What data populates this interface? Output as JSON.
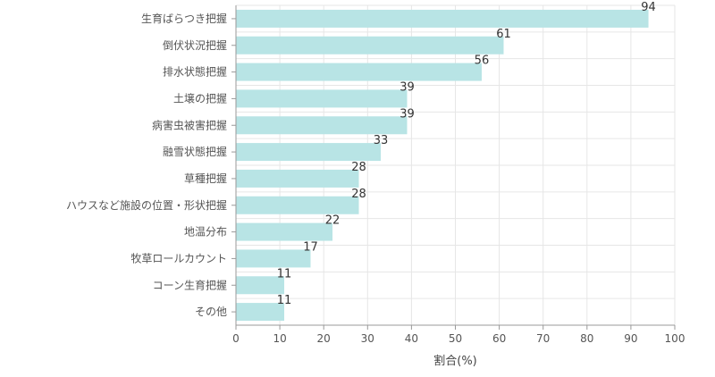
{
  "chart_data": {
    "type": "bar",
    "orientation": "horizontal",
    "categories": [
      "生育ばらつき把握",
      "倒伏状況把握",
      "排水状態把握",
      "土壌の把握",
      "病害虫被害把握",
      "融雪状態把握",
      "草種把握",
      "ハウスなど施設の位置・形状把握",
      "地温分布",
      "牧草ロールカウント",
      "コーン生育把握",
      "その他"
    ],
    "values": [
      94,
      61,
      56,
      39,
      39,
      33,
      28,
      28,
      22,
      17,
      11,
      11
    ],
    "data_labels": [
      "94",
      "61",
      "56",
      "39",
      "39",
      "33",
      "28",
      "28",
      "22",
      "17",
      "11",
      "11"
    ],
    "xlabel": "割合(%)",
    "ylabel": "",
    "xlim": [
      0,
      100
    ],
    "x_ticks": [
      "0",
      "10",
      "20",
      "30",
      "40",
      "50",
      "60",
      "70",
      "80",
      "90",
      "100"
    ],
    "grid": true,
    "bar_color": "#b8e4e5",
    "grid_color": "#e6e6e6",
    "axis_color": "#999999"
  }
}
